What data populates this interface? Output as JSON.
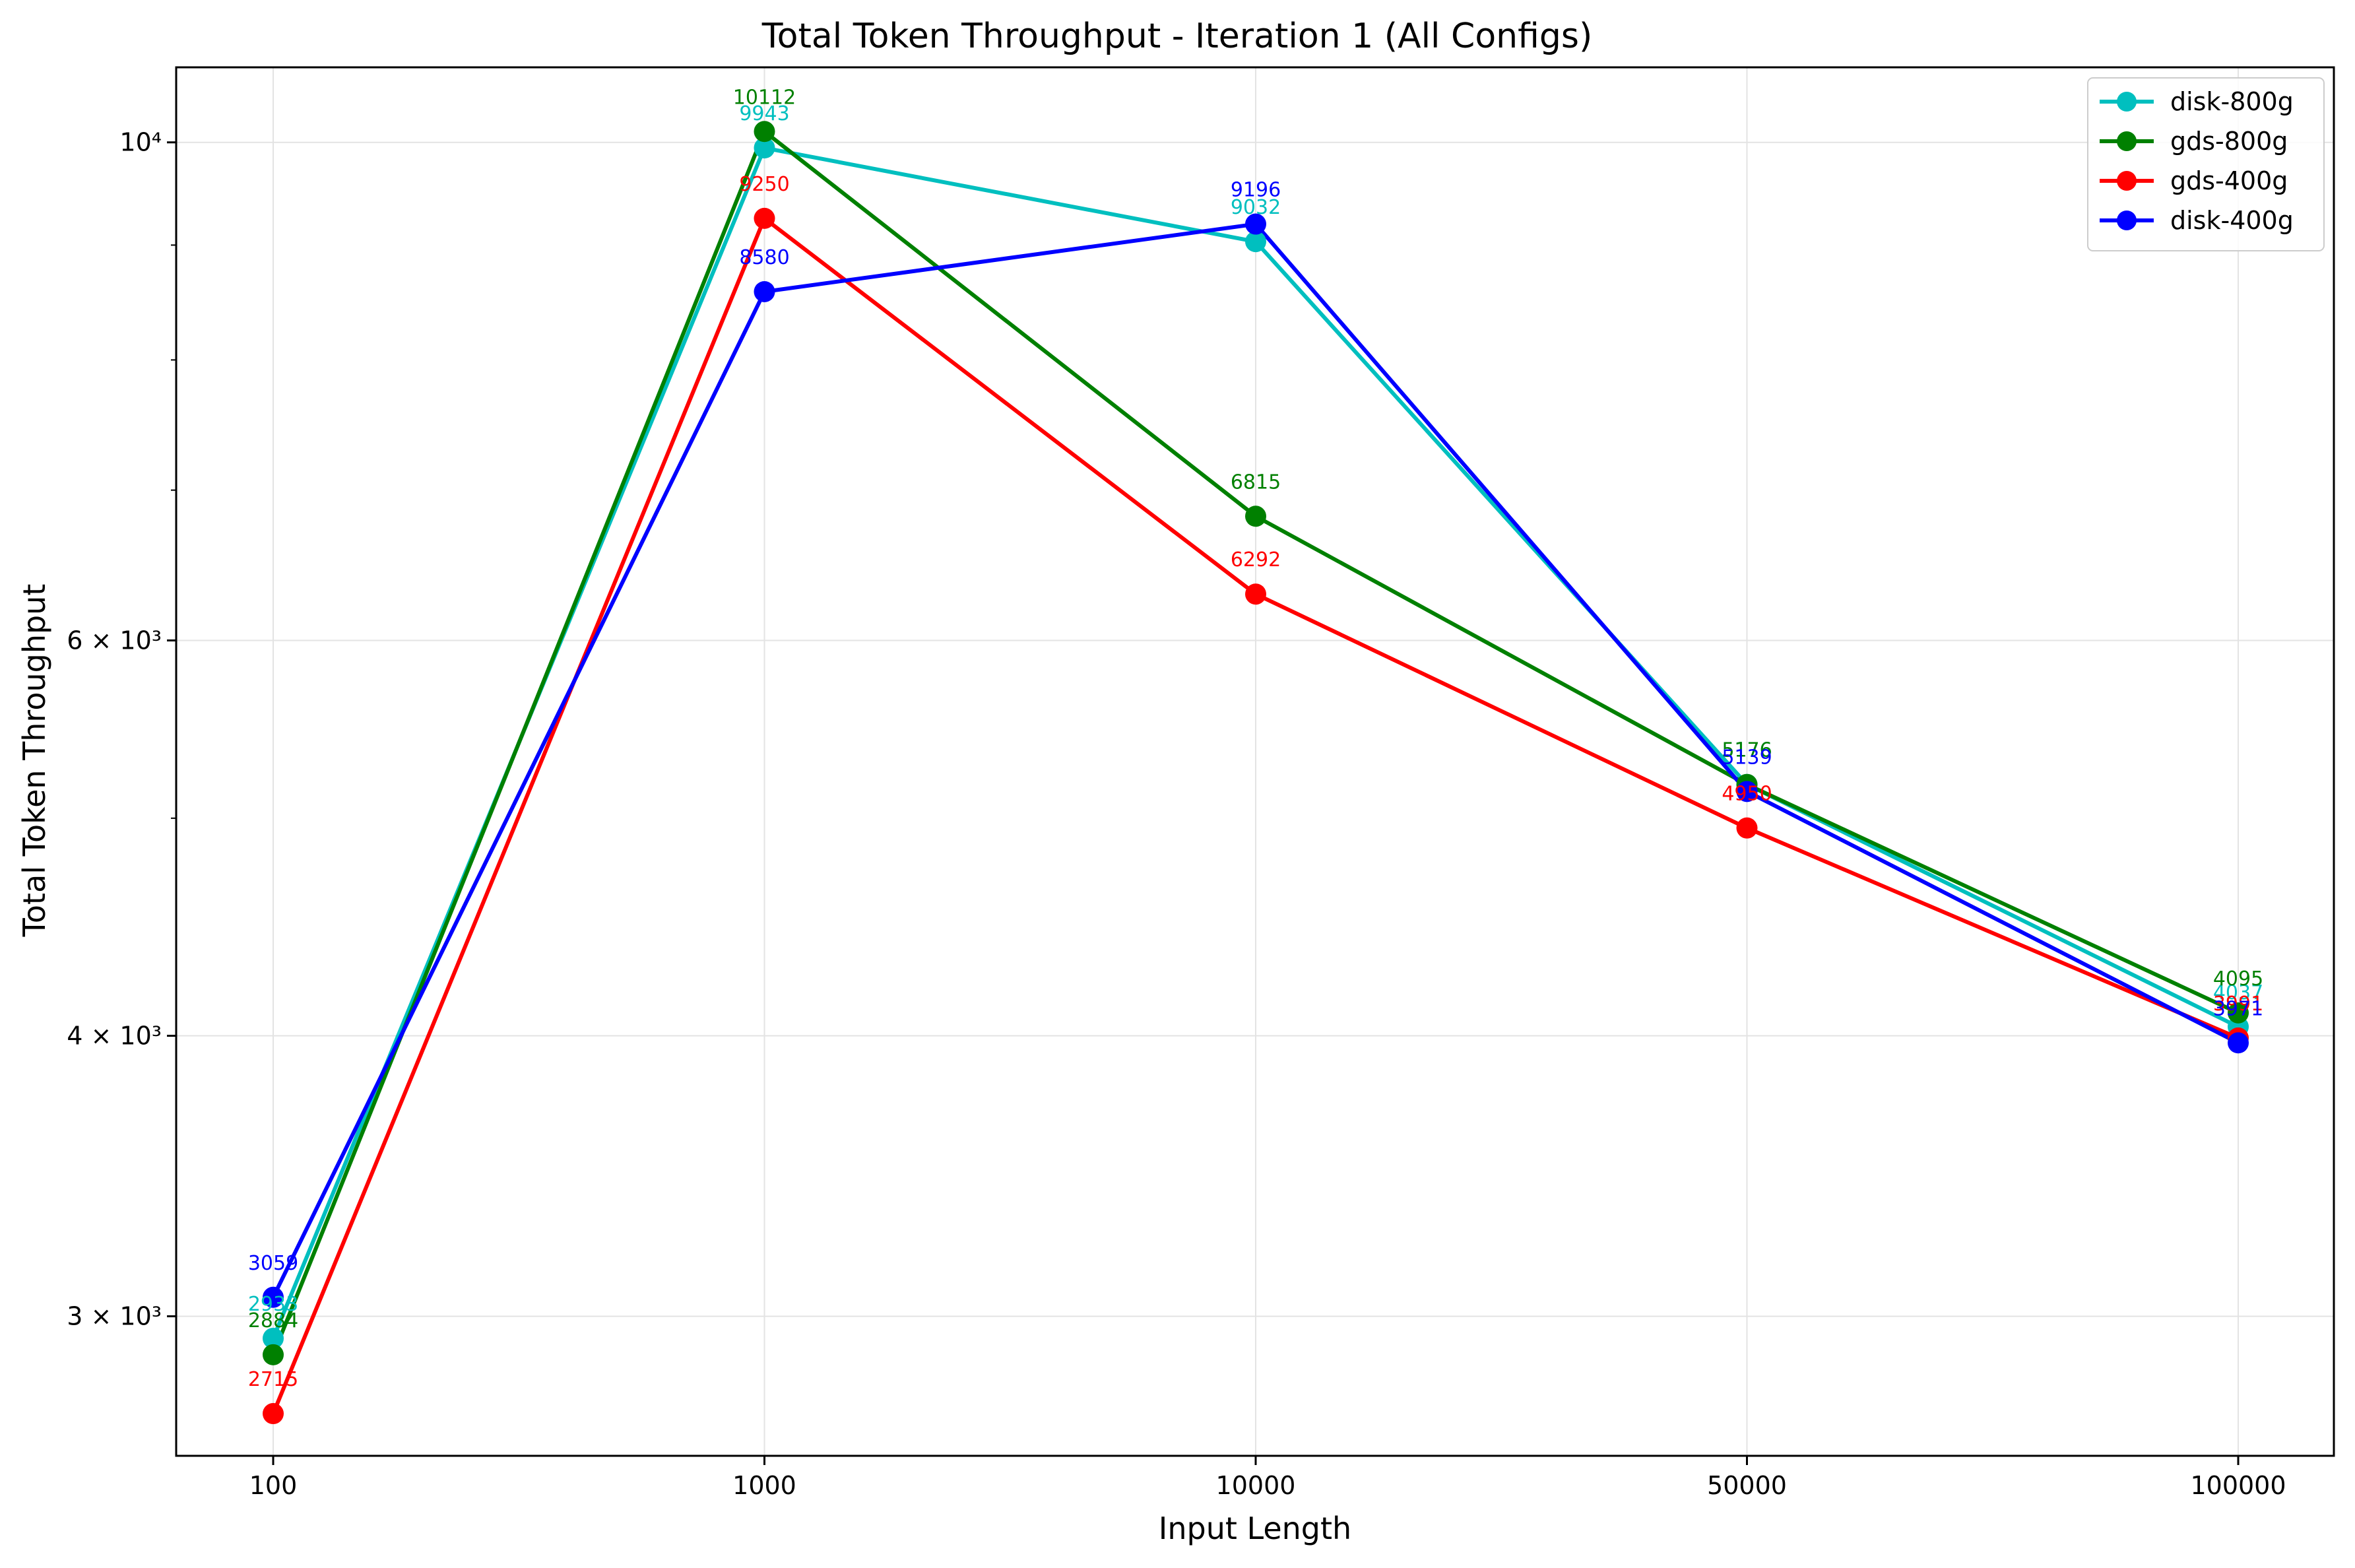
{
  "chart_data": {
    "type": "line",
    "title": "Total Token Throughput - Iteration 1 (All Configs)",
    "xlabel": "Input Length",
    "ylabel": "Total Token Throughput",
    "categories": [
      "100",
      "1000",
      "10000",
      "50000",
      "100000"
    ],
    "y_scale": "log",
    "ylim": [
      2600,
      10800
    ],
    "y_ticks": [
      {
        "value": 3000,
        "label": "3 × 10³"
      },
      {
        "value": 4000,
        "label": "4 × 10³"
      },
      {
        "value": 6000,
        "label": "6 × 10³"
      },
      {
        "value": 10000,
        "label": "10⁴"
      }
    ],
    "y_minor_ticks": [
      5000,
      7000,
      8000,
      9000
    ],
    "grid": true,
    "legend_position": "top-right",
    "series": [
      {
        "name": "disk-800g",
        "color": "#00bfbf",
        "values": [
          2933,
          9943,
          9032,
          5176,
          4037
        ]
      },
      {
        "name": "gds-800g",
        "color": "#008000",
        "values": [
          2884,
          10112,
          6815,
          5176,
          4095
        ]
      },
      {
        "name": "gds-400g",
        "color": "#ff0000",
        "values": [
          2715,
          9250,
          6292,
          4950,
          3991
        ]
      },
      {
        "name": "disk-400g",
        "color": "#0000ff",
        "values": [
          3059,
          8580,
          9196,
          5139,
          3971
        ]
      }
    ]
  }
}
